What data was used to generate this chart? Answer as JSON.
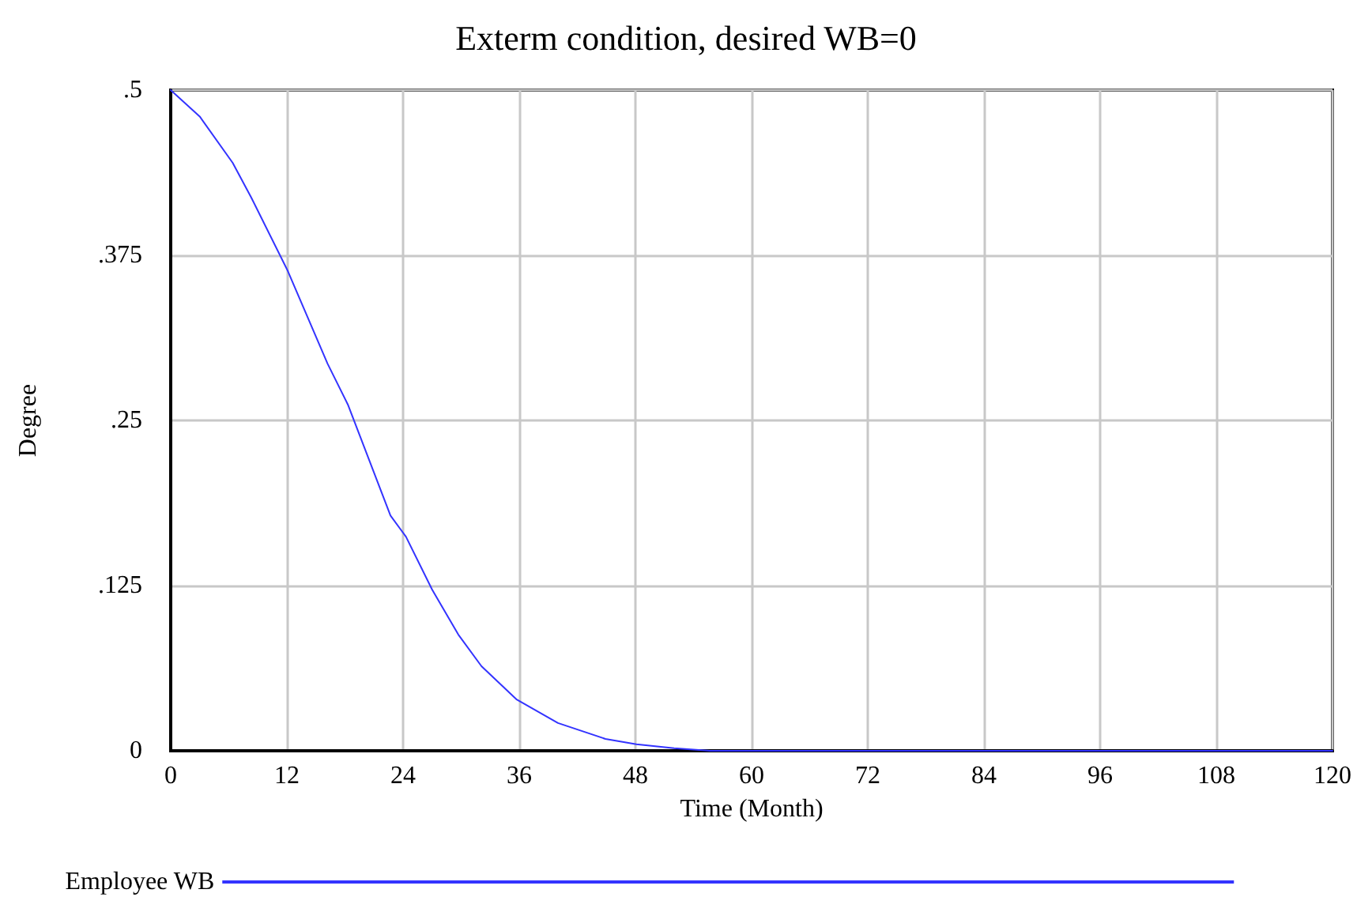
{
  "chart_data": {
    "type": "line",
    "title": "Exterm condition, desired WB=0",
    "xlabel": "Time (Month)",
    "ylabel": "Degree",
    "x": [
      0,
      3,
      6.4,
      8.3,
      12.1,
      16.2,
      18.3,
      22.7,
      24.3,
      27,
      29.7,
      32.1,
      35.7,
      40,
      44.9,
      48.1,
      52,
      55.7,
      60,
      72,
      84,
      96,
      108,
      120
    ],
    "series": [
      {
        "name": "Employee WB",
        "color": "#3333ff",
        "values": [
          0.5,
          0.48,
          0.445,
          0.419,
          0.363,
          0.293,
          0.262,
          0.178,
          0.162,
          0.122,
          0.088,
          0.064,
          0.039,
          0.021,
          0.009,
          0.005,
          0.002,
          0,
          0,
          0,
          0,
          0,
          0,
          0
        ]
      }
    ],
    "xlim": [
      0,
      120
    ],
    "xticks": [
      0,
      12,
      24,
      36,
      48,
      60,
      72,
      84,
      96,
      108,
      120
    ],
    "ylim": [
      0,
      0.5
    ],
    "yticks": [
      {
        "value": 0,
        "label": "0"
      },
      {
        "value": 0.125,
        "label": ".125"
      },
      {
        "value": 0.25,
        "label": ".25"
      },
      {
        "value": 0.375,
        "label": ".375"
      },
      {
        "value": 0.5,
        "label": ".5"
      }
    ],
    "grid": true,
    "legend": "bottom left",
    "line_style": "solid"
  }
}
